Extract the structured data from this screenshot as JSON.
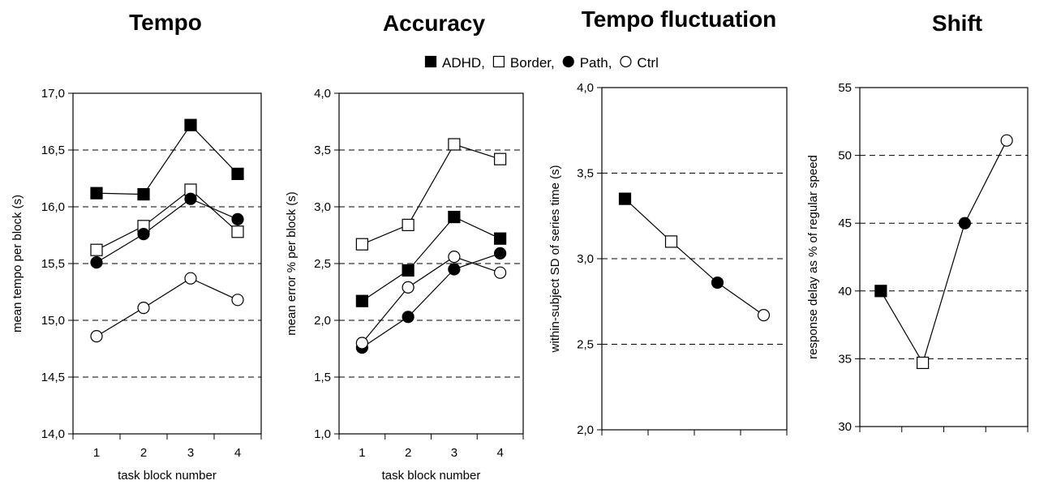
{
  "legend": {
    "entries": [
      {
        "marker": "filled-square",
        "label": "ADHD,"
      },
      {
        "marker": "open-square",
        "label": "Border,"
      },
      {
        "marker": "filled-circle",
        "label": "Path,"
      },
      {
        "marker": "open-circle",
        "label": "Ctrl"
      }
    ]
  },
  "chart_data": [
    {
      "type": "line",
      "title": "Tempo",
      "xlabel": "task block number",
      "ylabel": "mean tempo per block (s)",
      "categories": [
        "1",
        "2",
        "3",
        "4"
      ],
      "ylim": [
        14.0,
        17.0
      ],
      "yticks": [
        "14,0",
        "14,5",
        "15,0",
        "15,5",
        "16,0",
        "16,5",
        "17,0"
      ],
      "grid": "horizontal-dashed",
      "series": [
        {
          "name": "ADHD",
          "marker": "filled-square",
          "values": [
            16.12,
            16.11,
            16.72,
            16.29
          ]
        },
        {
          "name": "Border",
          "marker": "open-square",
          "values": [
            15.62,
            15.83,
            16.15,
            15.78
          ]
        },
        {
          "name": "Path",
          "marker": "filled-circle",
          "values": [
            15.51,
            15.76,
            16.07,
            15.89
          ]
        },
        {
          "name": "Ctrl",
          "marker": "open-circle",
          "values": [
            14.86,
            15.11,
            15.37,
            15.18
          ]
        }
      ]
    },
    {
      "type": "line",
      "title": "Accuracy",
      "xlabel": "task block number",
      "ylabel": "mean error % per block (s)",
      "categories": [
        "1",
        "2",
        "3",
        "4"
      ],
      "ylim": [
        1.0,
        4.0
      ],
      "yticks": [
        "1,0",
        "1,5",
        "2,0",
        "2,5",
        "3,0",
        "3,5",
        "4,0"
      ],
      "grid": "horizontal-dashed",
      "series": [
        {
          "name": "ADHD",
          "marker": "filled-square",
          "values": [
            2.17,
            2.44,
            2.91,
            2.72
          ]
        },
        {
          "name": "Border",
          "marker": "open-square",
          "values": [
            2.67,
            2.84,
            3.55,
            3.42
          ]
        },
        {
          "name": "Path",
          "marker": "filled-circle",
          "values": [
            1.76,
            2.03,
            2.45,
            2.59
          ]
        },
        {
          "name": "Ctrl",
          "marker": "open-circle",
          "values": [
            1.8,
            2.29,
            2.56,
            2.42
          ]
        }
      ]
    },
    {
      "type": "line",
      "title": "Tempo fluctuation",
      "xlabel": "",
      "ylabel": "within-subject SD of series time (s)",
      "categories": [
        "ADHD",
        "Border",
        "Path",
        "Ctrl"
      ],
      "ylim": [
        2.0,
        4.0
      ],
      "yticks": [
        "2,0",
        "2,5",
        "3,0",
        "3,5",
        "4,0"
      ],
      "grid": "horizontal-dashed",
      "series": [
        {
          "markers": [
            "filled-square",
            "open-square",
            "filled-circle",
            "open-circle"
          ],
          "values": [
            3.35,
            3.1,
            2.86,
            2.67
          ]
        }
      ]
    },
    {
      "type": "line",
      "title": "Shift",
      "xlabel": "",
      "ylabel": "response delay as % of regular speed",
      "categories": [
        "ADHD",
        "Border",
        "Path",
        "Ctrl"
      ],
      "ylim": [
        30,
        55
      ],
      "yticks": [
        "30",
        "35",
        "40",
        "45",
        "50",
        "55"
      ],
      "grid": "horizontal-dashed",
      "series": [
        {
          "markers": [
            "filled-square",
            "open-square",
            "filled-circle",
            "open-circle"
          ],
          "values": [
            40.0,
            34.7,
            45.0,
            51.1
          ]
        }
      ]
    }
  ]
}
